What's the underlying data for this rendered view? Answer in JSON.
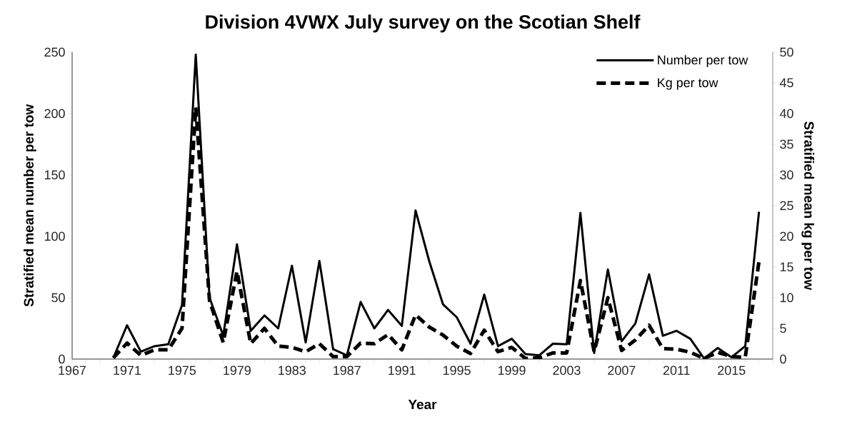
{
  "chart_data": {
    "type": "line",
    "title": "Division 4VWX July survey on the Scotian Shelf",
    "xlabel": "Year",
    "ylabel": "Stratified mean number per tow",
    "y2label": "Stratified mean kg per tow",
    "x": [
      1970,
      1971,
      1972,
      1973,
      1974,
      1975,
      1976,
      1977,
      1978,
      1979,
      1980,
      1981,
      1982,
      1983,
      1984,
      1985,
      1986,
      1987,
      1988,
      1989,
      1990,
      1991,
      1992,
      1993,
      1994,
      1995,
      1996,
      1997,
      1998,
      1999,
      2000,
      2001,
      2002,
      2003,
      2004,
      2005,
      2006,
      2007,
      2008,
      2009,
      2010,
      2011,
      2012,
      2013,
      2014,
      2015,
      2016,
      2017
    ],
    "series": [
      {
        "name": "Number per tow",
        "color": "#000000",
        "line_style": "solid",
        "values": [
          1,
          27.5,
          6,
          10.5,
          12,
          44,
          248,
          50,
          19,
          93.5,
          23,
          35.5,
          25,
          76,
          13.5,
          80,
          8,
          3,
          46.5,
          25,
          40,
          27,
          121,
          79.5,
          44.5,
          34,
          12.5,
          52.5,
          10.5,
          16.5,
          4,
          3,
          12.5,
          12,
          119,
          5,
          73,
          14.5,
          29,
          69,
          19,
          23,
          16.5,
          0.5,
          9,
          1.5,
          10.5,
          120
        ]
      },
      {
        "name": "Kg per tow",
        "color": "#000000",
        "line_style": "dashed",
        "axis": "y2",
        "values": [
          0.2,
          2.6,
          0.6,
          1.5,
          1.5,
          5,
          41,
          9.5,
          2.7,
          14.3,
          2.5,
          5,
          2.1,
          1.9,
          1.2,
          2.5,
          0.4,
          0.4,
          2.6,
          2.5,
          4,
          1.5,
          7.2,
          5.2,
          3.9,
          2.1,
          0.9,
          4.7,
          1.2,
          1.9,
          0.1,
          0.2,
          1,
          1,
          12.8,
          1.2,
          10,
          1.4,
          3.1,
          5.5,
          1.7,
          1.6,
          1.1,
          0.1,
          1.1,
          0.4,
          0.3,
          15.9
        ]
      }
    ],
    "xlim": [
      1967,
      2018
    ],
    "xticks": [
      1967,
      {
        "value": 1968,
        "label": null
      },
      {
        "value": 1969,
        "label": null
      },
      {
        "value": 1970,
        "label": null
      },
      1971,
      {
        "value": 1972,
        "label": null
      },
      {
        "value": 1973,
        "label": null
      },
      {
        "value": 1974,
        "label": null
      },
      1975,
      {
        "value": 1976,
        "label": null
      },
      {
        "value": 1977,
        "label": null
      },
      {
        "value": 1978,
        "label": null
      },
      1979,
      {
        "value": 1980,
        "label": null
      },
      {
        "value": 1981,
        "label": null
      },
      {
        "value": 1982,
        "label": null
      },
      1983,
      {
        "value": 1984,
        "label": null
      },
      {
        "value": 1985,
        "label": null
      },
      {
        "value": 1986,
        "label": null
      },
      1987,
      {
        "value": 1988,
        "label": null
      },
      {
        "value": 1989,
        "label": null
      },
      {
        "value": 1990,
        "label": null
      },
      1991,
      {
        "value": 1992,
        "label": null
      },
      {
        "value": 1993,
        "label": null
      },
      {
        "value": 1994,
        "label": null
      },
      1995,
      {
        "value": 1996,
        "label": null
      },
      {
        "value": 1997,
        "label": null
      },
      {
        "value": 1998,
        "label": null
      },
      1999,
      {
        "value": 2000,
        "label": null
      },
      {
        "value": 2001,
        "label": null
      },
      {
        "value": 2002,
        "label": null
      },
      2003,
      {
        "value": 2004,
        "label": null
      },
      {
        "value": 2005,
        "label": null
      },
      {
        "value": 2006,
        "label": null
      },
      2007,
      {
        "value": 2008,
        "label": null
      },
      {
        "value": 2009,
        "label": null
      },
      {
        "value": 2010,
        "label": null
      },
      2011,
      {
        "value": 2012,
        "label": null
      },
      {
        "value": 2013,
        "label": null
      },
      {
        "value": 2014,
        "label": null
      },
      2015,
      {
        "value": 2016,
        "label": null
      },
      {
        "value": 2017,
        "label": null
      },
      {
        "value": 2018,
        "label": null
      }
    ],
    "ylim": [
      0,
      250
    ],
    "yticks": [
      0,
      50,
      100,
      150,
      200,
      250
    ],
    "y2lim": [
      0,
      50
    ],
    "y2ticks": [
      0,
      5,
      10,
      15,
      20,
      25,
      30,
      35,
      40,
      45,
      50
    ],
    "legend": "top right",
    "grid": false
  }
}
